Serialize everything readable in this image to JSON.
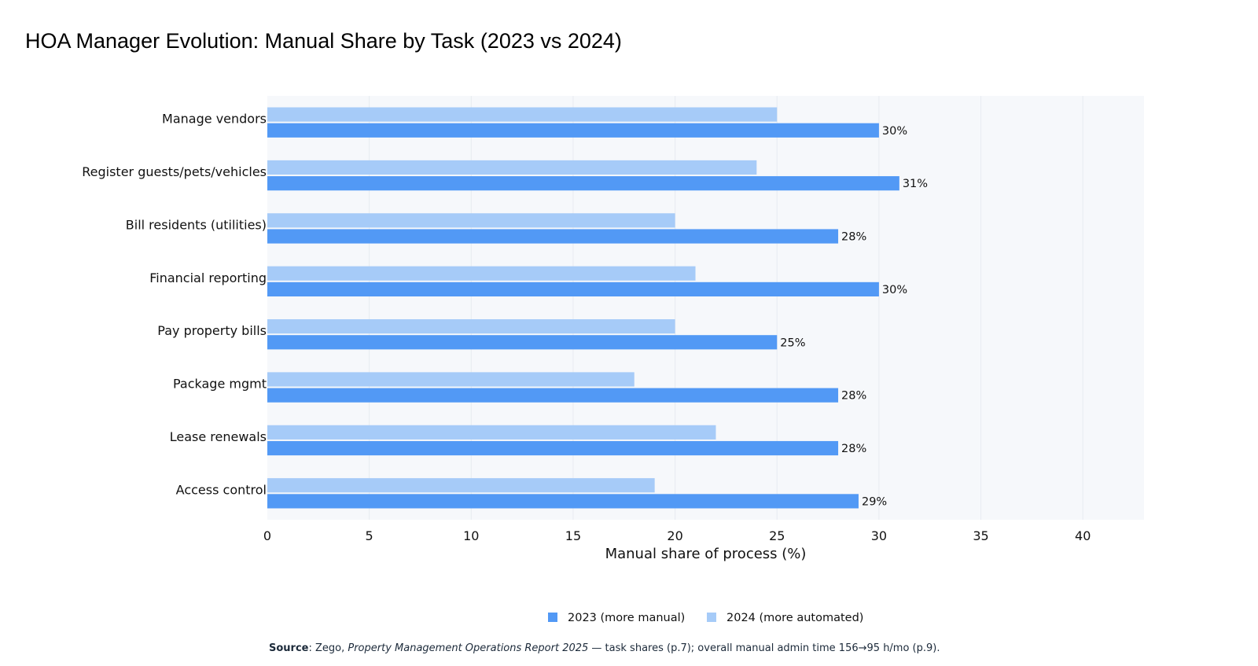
{
  "chart_data": {
    "type": "bar",
    "orientation": "horizontal",
    "title": "HOA Manager Evolution: Manual Share by Task (2023 vs 2024)",
    "xlabel": "Manual share of process (%)",
    "ylabel": "",
    "xlim": [
      0,
      43
    ],
    "x_ticks": [
      0,
      5,
      10,
      15,
      20,
      25,
      30,
      35,
      40
    ],
    "grid": true,
    "legend_position": "bottom-center",
    "categories": [
      "Manage vendors",
      "Register guests/pets/vehicles",
      "Bill residents (utilities)",
      "Financial reporting",
      "Pay property bills",
      "Package mgmt",
      "Lease renewals",
      "Access control"
    ],
    "series": [
      {
        "name": "2023 (more manual)",
        "color": "#5299f5",
        "values": [
          30,
          31,
          28,
          30,
          25,
          28,
          28,
          29
        ],
        "data_labels": [
          "30%",
          "31%",
          "28%",
          "30%",
          "25%",
          "28%",
          "28%",
          "29%"
        ]
      },
      {
        "name": "2024 (more automated)",
        "color": "#a6cbf8",
        "values": [
          25,
          24,
          20,
          21,
          20,
          18,
          22,
          19
        ]
      }
    ]
  },
  "source": {
    "label": "Source",
    "text_before": ": Zego, ",
    "publication": "Property Management Operations Report 2025",
    "text_after": " — task shares (p.7); overall manual admin time 156→95 h/mo (p.9)."
  }
}
